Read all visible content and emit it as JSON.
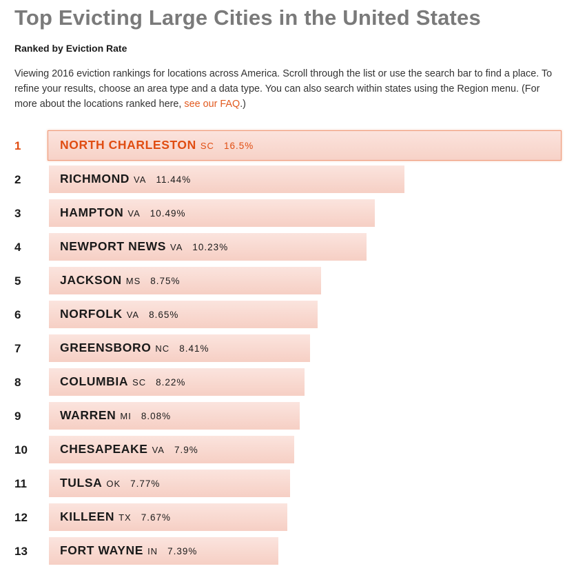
{
  "header": {
    "title": "Top Evicting Large Cities in the United States",
    "subtitle": "Ranked by Eviction Rate",
    "intro_text": "Viewing 2016 eviction rankings for locations across America. Scroll through the list or use the search bar to find a place. To refine your results, choose an area type and a data type. You can also search within states using the Region menu. (For more about the locations ranked here, ",
    "faq_link": "see our FAQ",
    "intro_end": ".)"
  },
  "chart_data": {
    "type": "bar",
    "orientation": "horizontal",
    "title": "Top Evicting Large Cities in the United States",
    "subtitle": "Ranked by Eviction Rate",
    "unit": "%",
    "xlim": [
      0,
      16.5
    ],
    "rows": [
      {
        "rank": "1",
        "city": "NORTH CHARLESTON",
        "state": "SC",
        "value": 16.5,
        "label": "16.5%",
        "active": true
      },
      {
        "rank": "2",
        "city": "RICHMOND",
        "state": "VA",
        "value": 11.44,
        "label": "11.44%"
      },
      {
        "rank": "3",
        "city": "HAMPTON",
        "state": "VA",
        "value": 10.49,
        "label": "10.49%"
      },
      {
        "rank": "4",
        "city": "NEWPORT NEWS",
        "state": "VA",
        "value": 10.23,
        "label": "10.23%"
      },
      {
        "rank": "5",
        "city": "JACKSON",
        "state": "MS",
        "value": 8.75,
        "label": "8.75%"
      },
      {
        "rank": "6",
        "city": "NORFOLK",
        "state": "VA",
        "value": 8.65,
        "label": "8.65%"
      },
      {
        "rank": "7",
        "city": "GREENSBORO",
        "state": "NC",
        "value": 8.41,
        "label": "8.41%"
      },
      {
        "rank": "8",
        "city": "COLUMBIA",
        "state": "SC",
        "value": 8.22,
        "label": "8.22%"
      },
      {
        "rank": "9",
        "city": "WARREN",
        "state": "MI",
        "value": 8.08,
        "label": "8.08%"
      },
      {
        "rank": "10",
        "city": "CHESAPEAKE",
        "state": "VA",
        "value": 7.9,
        "label": "7.9%"
      },
      {
        "rank": "11",
        "city": "TULSA",
        "state": "OK",
        "value": 7.77,
        "label": "7.77%"
      },
      {
        "rank": "12",
        "city": "KILLEEN",
        "state": "TX",
        "value": 7.67,
        "label": "7.67%"
      },
      {
        "rank": "13",
        "city": "FORT WAYNE",
        "state": "IN",
        "value": 7.39,
        "label": "7.39%"
      }
    ]
  },
  "colors": {
    "accent": "#e04d12",
    "bar": "#f6cfc4",
    "title": "#7a7a7a"
  }
}
